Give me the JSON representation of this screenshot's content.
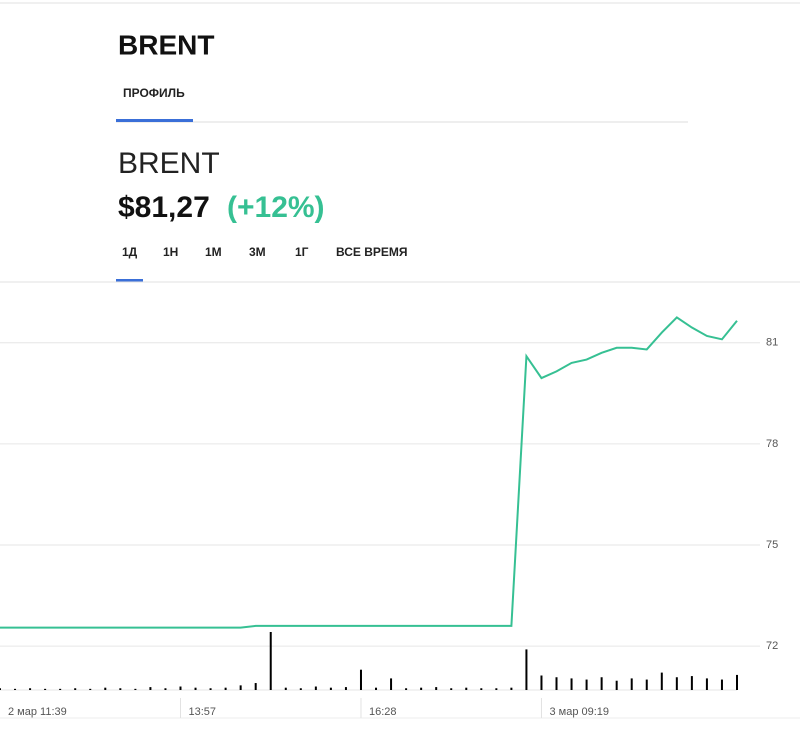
{
  "header": {
    "title": "BRENT",
    "tab": "ПРОФИЛЬ"
  },
  "quote": {
    "name": "BRENT",
    "price": "$81,27",
    "change": "(+12%)"
  },
  "periods": [
    "1Д",
    "1Н",
    "1М",
    "3М",
    "1Г",
    "ВСЕ ВРЕМЯ"
  ],
  "chart_data": {
    "type": "line",
    "categories": [
      "2 мар 11:39",
      null,
      null,
      null,
      null,
      null,
      null,
      null,
      null,
      null,
      null,
      null,
      "13:57",
      null,
      null,
      null,
      null,
      null,
      null,
      null,
      null,
      null,
      null,
      null,
      "16:28",
      null,
      null,
      null,
      null,
      null,
      null,
      null,
      null,
      null,
      null,
      null,
      "3 мар 09:19",
      null,
      null,
      null,
      null,
      null,
      null,
      null,
      null,
      null,
      null,
      null,
      null,
      null
    ],
    "series": [
      {
        "name": "BRENT",
        "color": "#36c093",
        "values": [
          72.55,
          72.55,
          72.55,
          72.55,
          72.55,
          72.55,
          72.55,
          72.55,
          72.55,
          72.55,
          72.55,
          72.55,
          72.55,
          72.55,
          72.55,
          72.55,
          72.55,
          72.6,
          72.6,
          72.6,
          72.6,
          72.6,
          72.6,
          72.6,
          72.6,
          72.6,
          72.6,
          72.6,
          72.6,
          72.6,
          72.6,
          72.6,
          72.6,
          72.6,
          72.6,
          80.6,
          79.95,
          80.15,
          80.4,
          80.5,
          80.7,
          80.85,
          80.85,
          80.8,
          81.3,
          81.75,
          81.45,
          81.2,
          81.1,
          81.65
        ]
      }
    ],
    "volume": {
      "color": "#000000",
      "values": [
        3,
        2,
        3,
        2,
        2,
        3,
        2,
        4,
        3,
        2,
        5,
        3,
        6,
        4,
        3,
        4,
        8,
        12,
        100,
        4,
        3,
        6,
        4,
        5,
        35,
        4,
        20,
        3,
        4,
        5,
        3,
        4,
        3,
        3,
        4,
        70,
        25,
        22,
        20,
        18,
        22,
        16,
        20,
        18,
        30,
        22,
        24,
        20,
        18,
        26
      ]
    },
    "vlim": [
      0,
      100
    ],
    "ylim": [
      70.7,
      82.8
    ],
    "yticks": [
      72,
      75,
      78,
      81
    ],
    "grid": true
  }
}
